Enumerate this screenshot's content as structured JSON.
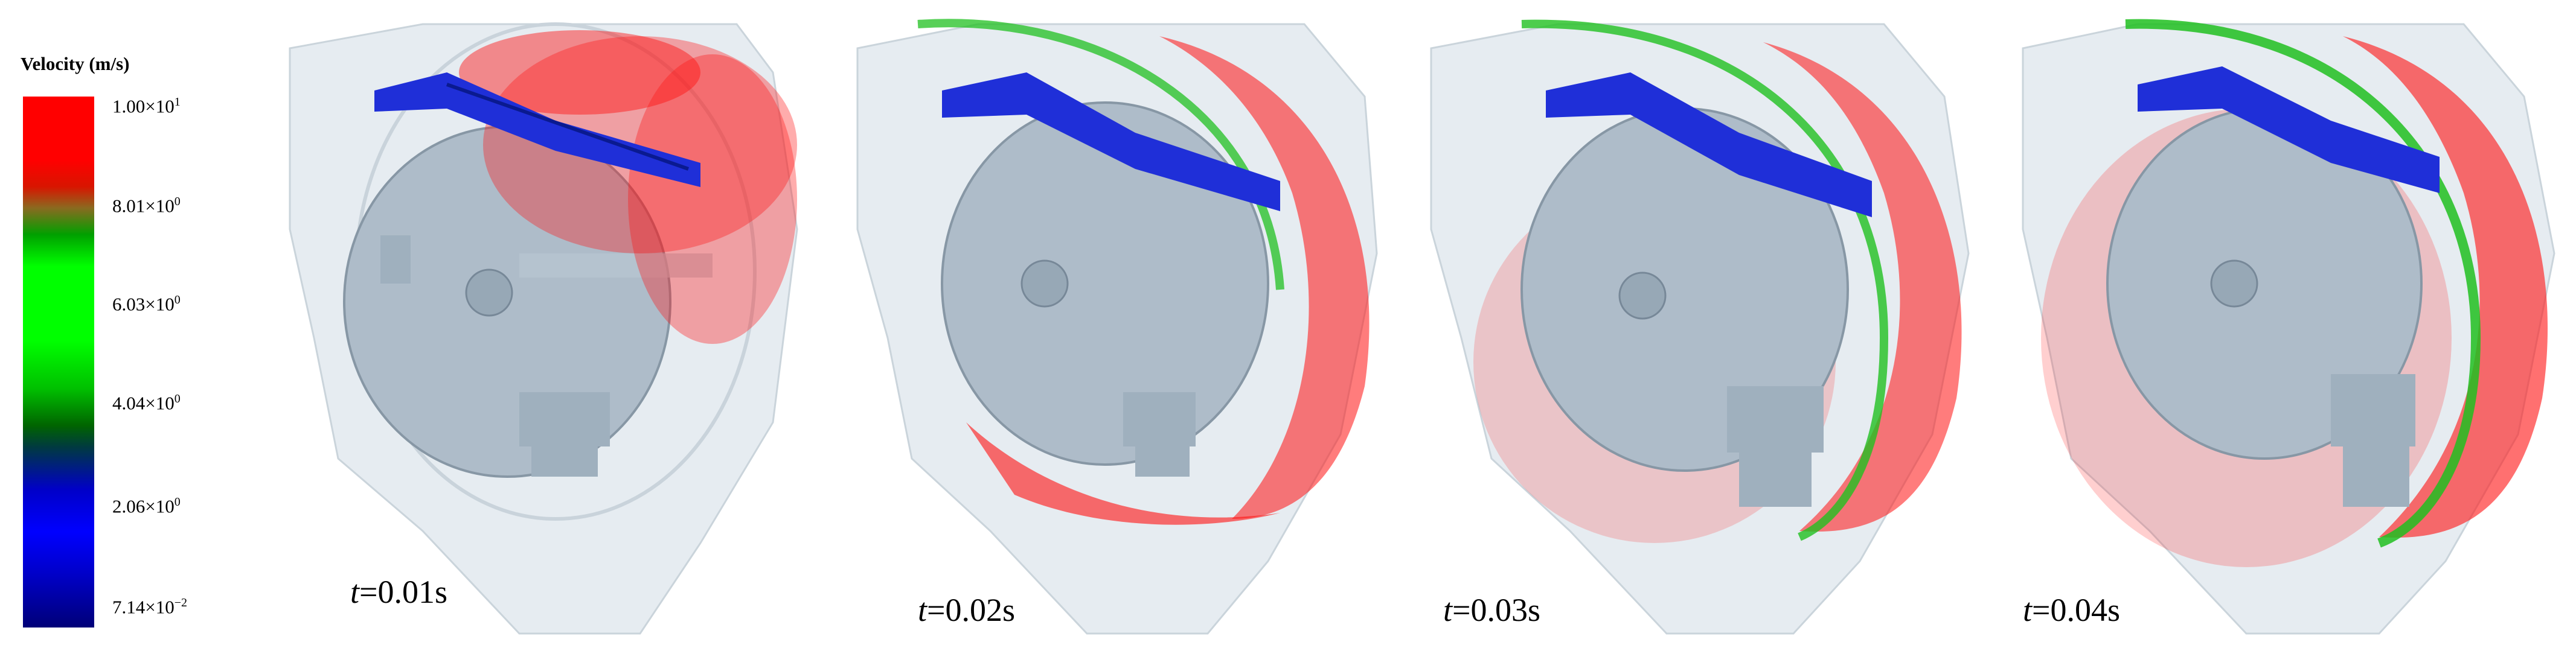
{
  "legend": {
    "title": "Velocity (m/s)",
    "ticks": [
      {
        "mantissa": "1.00×10",
        "exp": "1"
      },
      {
        "mantissa": "8.01×10",
        "exp": "0"
      },
      {
        "mantissa": "6.03×10",
        "exp": "0"
      },
      {
        "mantissa": "4.04×10",
        "exp": "0"
      },
      {
        "mantissa": "2.06×10",
        "exp": "0"
      },
      {
        "mantissa": "7.14×10",
        "exp": "−2"
      }
    ],
    "colors": {
      "max": "#ff0000",
      "mid_high": "#00ff00",
      "mid_low": "#0000ff",
      "min": "#000078"
    }
  },
  "panels": [
    {
      "t_symbol": "t",
      "t_value": "=0.01s"
    },
    {
      "t_symbol": "t",
      "t_value": "=0.02s"
    },
    {
      "t_symbol": "t",
      "t_value": "=0.03s"
    },
    {
      "t_symbol": "t",
      "t_value": "=0.04s"
    }
  ]
}
